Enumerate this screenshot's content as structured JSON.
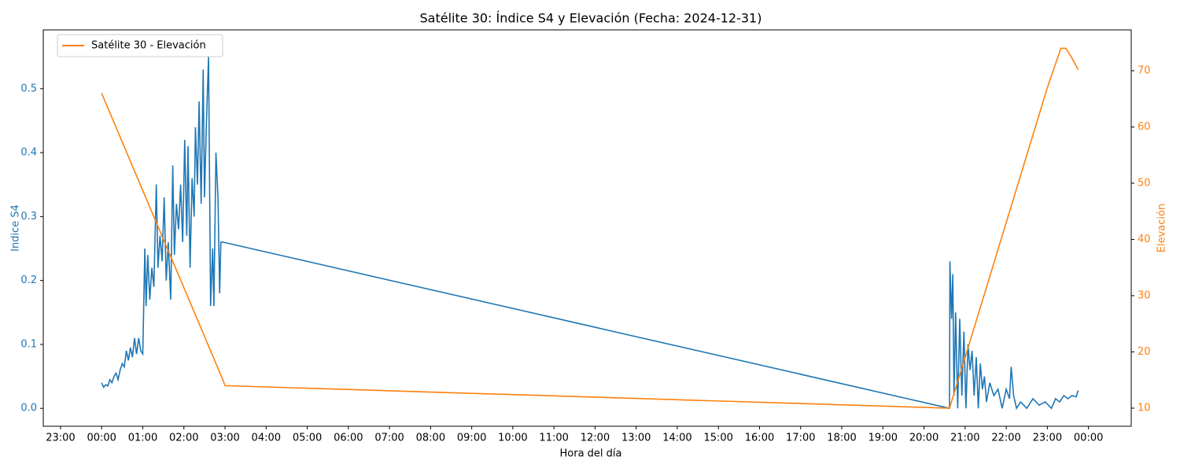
{
  "chart_data": {
    "type": "line",
    "title": "Satélite 30: Índice S4 y Elevación (Fecha: 2024-12-31)",
    "x_label": "Hora del día",
    "y_label": "Indice S4",
    "y2_label": "Elevación",
    "xlim": [
      -1.42,
      25.04
    ],
    "ylim": [
      -0.028,
      0.592
    ],
    "y2lim": [
      6.78,
      77.27
    ],
    "xticks": [
      {
        "value": -1,
        "label": "23:00"
      },
      {
        "value": 0,
        "label": "00:00"
      },
      {
        "value": 1,
        "label": "01:00"
      },
      {
        "value": 2,
        "label": "02:00"
      },
      {
        "value": 3,
        "label": "03:00"
      },
      {
        "value": 4,
        "label": "04:00"
      },
      {
        "value": 5,
        "label": "05:00"
      },
      {
        "value": 6,
        "label": "06:00"
      },
      {
        "value": 7,
        "label": "07:00"
      },
      {
        "value": 8,
        "label": "08:00"
      },
      {
        "value": 9,
        "label": "09:00"
      },
      {
        "value": 10,
        "label": "10:00"
      },
      {
        "value": 11,
        "label": "11:00"
      },
      {
        "value": 12,
        "label": "12:00"
      },
      {
        "value": 13,
        "label": "13:00"
      },
      {
        "value": 14,
        "label": "14:00"
      },
      {
        "value": 15,
        "label": "15:00"
      },
      {
        "value": 16,
        "label": "16:00"
      },
      {
        "value": 17,
        "label": "17:00"
      },
      {
        "value": 18,
        "label": "18:00"
      },
      {
        "value": 19,
        "label": "19:00"
      },
      {
        "value": 20,
        "label": "20:00"
      },
      {
        "value": 21,
        "label": "21:00"
      },
      {
        "value": 22,
        "label": "22:00"
      },
      {
        "value": 23,
        "label": "23:00"
      },
      {
        "value": 24,
        "label": "00:00"
      }
    ],
    "yticks": [
      {
        "value": 0,
        "label": "0.0"
      },
      0.1,
      0.2,
      0.3,
      0.4,
      0.5
    ],
    "y2ticks": [
      10,
      20,
      30,
      40,
      50,
      60,
      70
    ],
    "legend": "upper left",
    "grid": false,
    "series": [
      {
        "color": "#1f77b4",
        "x": [
          0,
          0.05,
          0.1,
          0.15,
          0.2,
          0.25,
          0.3,
          0.35,
          0.4,
          0.45,
          0.5,
          0.55,
          0.6,
          0.65,
          0.7,
          0.75,
          0.8,
          0.85,
          0.9,
          0.95,
          1.0,
          1.05,
          1.08,
          1.12,
          1.17,
          1.22,
          1.27,
          1.33,
          1.37,
          1.42,
          1.47,
          1.52,
          1.57,
          1.62,
          1.68,
          1.73,
          1.77,
          1.82,
          1.87,
          1.92,
          1.97,
          2.02,
          2.07,
          2.1,
          2.15,
          2.2,
          2.25,
          2.28,
          2.33,
          2.37,
          2.42,
          2.47,
          2.5,
          2.55,
          2.6,
          2.65,
          2.7,
          2.73,
          2.78,
          2.83,
          2.87,
          2.9,
          2.95,
          20.62,
          20.63,
          20.67,
          20.7,
          20.73,
          20.77,
          20.82,
          20.87,
          20.92,
          20.97,
          21.02,
          21.07,
          21.12,
          21.17,
          21.22,
          21.27,
          21.32,
          21.37,
          21.42,
          21.47,
          21.52,
          21.6,
          21.7,
          21.8,
          21.9,
          22.0,
          22.08,
          22.12,
          22.18,
          22.25,
          22.35,
          22.5,
          22.65,
          22.8,
          22.95,
          23.1,
          23.2,
          23.3,
          23.4,
          23.5,
          23.6,
          23.7,
          23.75
        ],
        "values": [
          0.04,
          0.033,
          0.037,
          0.035,
          0.045,
          0.04,
          0.05,
          0.055,
          0.045,
          0.06,
          0.07,
          0.065,
          0.09,
          0.075,
          0.095,
          0.08,
          0.11,
          0.085,
          0.11,
          0.09,
          0.085,
          0.25,
          0.16,
          0.24,
          0.17,
          0.22,
          0.19,
          0.35,
          0.22,
          0.27,
          0.23,
          0.33,
          0.2,
          0.26,
          0.17,
          0.38,
          0.24,
          0.32,
          0.28,
          0.35,
          0.26,
          0.42,
          0.27,
          0.41,
          0.22,
          0.36,
          0.3,
          0.44,
          0.35,
          0.48,
          0.32,
          0.53,
          0.33,
          0.45,
          0.55,
          0.16,
          0.25,
          0.16,
          0.4,
          0.33,
          0.18,
          0.26,
          0.26,
          0.0,
          0.23,
          0.14,
          0.21,
          0.02,
          0.15,
          0.0,
          0.14,
          0.02,
          0.12,
          0.0,
          0.1,
          0.06,
          0.09,
          0.02,
          0.08,
          0.0,
          0.07,
          0.03,
          0.05,
          0.01,
          0.04,
          0.02,
          0.03,
          0.0,
          0.03,
          0.015,
          0.065,
          0.02,
          0.0,
          0.01,
          0.0,
          0.015,
          0.005,
          0.01,
          0.0,
          0.015,
          0.01,
          0.02,
          0.015,
          0.02,
          0.018,
          0.028
        ]
      },
      {
        "name": "Satélite 30 - Elevación",
        "color": "#ff7f0e",
        "axis": "y2",
        "x": [
          0,
          2.95,
          3.0,
          20.62,
          21.0,
          22.0,
          23.0,
          23.33,
          23.45,
          23.58,
          23.75
        ],
        "values": [
          66,
          15,
          14,
          10,
          19,
          43,
          67,
          74,
          74,
          72.5,
          70.2
        ]
      }
    ]
  }
}
